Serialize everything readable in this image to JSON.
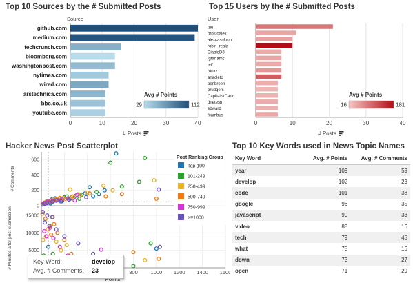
{
  "panels": {
    "sources_title": "Top 10 Sources by the # Submitted Posts",
    "users_title": "Top 15 Users by the # Submitted Posts",
    "scatter_title": "Hacker News Post Scatterplot",
    "keywords_title": "Top 10 Key Words used in News Topic Names"
  },
  "colors": {
    "blue_low": "#b7dcec",
    "blue_high": "#1f4e79",
    "red_low": "#f3c7c3",
    "red_high": "#b50d18"
  },
  "tooltip": {
    "keyword_label": "Key Word:",
    "keyword_value": "develop",
    "comments_label": "Avg. # Comments:",
    "comments_value": "23"
  },
  "chart_data": [
    {
      "type": "bar",
      "orientation": "horizontal",
      "title": "Top 10 Sources by the # Submitted Posts",
      "ylabel": "Source",
      "xlabel": "# Posts",
      "categories": [
        "github.com",
        "medium.com",
        "techcrunch.com",
        "bloomberg.com",
        "washingtonpost.com",
        "nytimes.com",
        "wired.com",
        "arstechnica.com",
        "bbc.co.uk",
        "youtube.com"
      ],
      "values": [
        40,
        39,
        16,
        14,
        14,
        12,
        12,
        11,
        11,
        11
      ],
      "color_values": [
        112,
        108,
        55,
        29,
        48,
        40,
        60,
        52,
        44,
        36
      ],
      "xlim": [
        0,
        40
      ],
      "xticks": [
        0,
        10,
        20,
        30,
        40
      ],
      "legend": {
        "title": "Avg # Points",
        "min": 29,
        "max": 112,
        "placement": "bottom-right"
      }
    },
    {
      "type": "bar",
      "orientation": "horizontal",
      "title": "Top 15 Users by the # Submitted Posts",
      "ylabel": "User",
      "xlabel": "# Posts",
      "categories": [
        "tuu",
        "prostoalex",
        "alexcasalboni",
        "robin_reala",
        "DiabloD3",
        "jgrahamc",
        "ieif",
        "nkurz",
        "anacleto",
        "benbreen",
        "brudgers",
        "CapitalistCartr",
        "dnetesn",
        "edward",
        "fcambus"
      ],
      "values": [
        21,
        11,
        10,
        10,
        7,
        7,
        7,
        7,
        7,
        6,
        6,
        6,
        6,
        6,
        6
      ],
      "color_values": [
        88,
        45,
        50,
        181,
        40,
        45,
        42,
        60,
        110,
        38,
        30,
        35,
        40,
        36,
        42
      ],
      "xlim": [
        0,
        40
      ],
      "xticks": [
        0,
        10,
        20,
        30,
        40
      ],
      "legend": {
        "title": "Avg # Points",
        "min": 16,
        "max": 181,
        "placement": "bottom-right"
      }
    },
    {
      "type": "scatter",
      "title": "Hacker News Post Scatterplot",
      "xlabel": "Points",
      "ylabel_top": "# Comments",
      "ylabel_bottom": "# Minutes after post submission",
      "xlim": [
        0,
        1600
      ],
      "xticks": [
        0,
        200,
        400,
        600,
        800,
        1000,
        1200,
        1400,
        1600
      ],
      "ylim_top": [
        0,
        700
      ],
      "yticks_top": [
        0,
        200,
        400,
        600
      ],
      "ylim_bottom": [
        0,
        17000
      ],
      "yticks_bottom": [
        0,
        5000,
        10000,
        15000
      ],
      "legend": {
        "title": "Post Ranking Group",
        "placement": "right",
        "items": [
          {
            "label": "Top 100",
            "color": "#1f77b4"
          },
          {
            "label": "101-249",
            "color": "#2ca02c"
          },
          {
            "label": "250-499",
            "color": "#e8b521"
          },
          {
            "label": "500-749",
            "color": "#f07a10"
          },
          {
            "label": "750-999",
            "color": "#d634d6"
          },
          {
            "label": ">=1000",
            "color": "#6a54b8"
          }
        ]
      },
      "series": [
        {
          "name": "Top 100",
          "color": "#1f77b4",
          "top": [
            [
              30,
              40
            ],
            [
              60,
              55
            ],
            [
              90,
              80
            ],
            [
              120,
              95
            ],
            [
              150,
              70
            ],
            [
              200,
              110
            ],
            [
              250,
              90
            ],
            [
              300,
              130
            ],
            [
              380,
              160
            ],
            [
              450,
              120
            ],
            [
              550,
              200
            ],
            [
              650,
              680
            ],
            [
              420,
              240
            ],
            [
              180,
              60
            ],
            [
              500,
              150
            ],
            [
              80,
              30
            ]
          ],
          "bottom": [
            [
              30,
              3000
            ],
            [
              60,
              6000
            ],
            [
              120,
              2000
            ],
            [
              200,
              1500
            ],
            [
              300,
              800
            ],
            [
              500,
              700
            ],
            [
              700,
              600
            ],
            [
              1000,
              5500
            ],
            [
              400,
              400
            ],
            [
              150,
              1200
            ],
            [
              90,
              200
            ]
          ]
        },
        {
          "name": "101-249",
          "color": "#2ca02c",
          "top": [
            [
              20,
              30
            ],
            [
              50,
              60
            ],
            [
              80,
              45
            ],
            [
              110,
              70
            ],
            [
              160,
              90
            ],
            [
              220,
              120
            ],
            [
              280,
              100
            ],
            [
              350,
              140
            ],
            [
              480,
              180
            ],
            [
              600,
              560
            ],
            [
              900,
              620
            ],
            [
              850,
              310
            ],
            [
              700,
              250
            ],
            [
              330,
              90
            ]
          ],
          "bottom": [
            [
              20,
              3500
            ],
            [
              60,
              2500
            ],
            [
              100,
              4000
            ],
            [
              150,
              1800
            ],
            [
              240,
              1200
            ],
            [
              300,
              2600
            ],
            [
              400,
              900
            ],
            [
              600,
              1500
            ],
            [
              950,
              7000
            ],
            [
              800,
              500
            ]
          ]
        },
        {
          "name": "250-499",
          "color": "#e8b521",
          "top": [
            [
              15,
              20
            ],
            [
              40,
              50
            ],
            [
              70,
              60
            ],
            [
              100,
              75
            ],
            [
              140,
              85
            ],
            [
              190,
              100
            ],
            [
              260,
              110
            ],
            [
              320,
              150
            ],
            [
              400,
              170
            ],
            [
              540,
              260
            ],
            [
              980,
              330
            ],
            [
              620,
              200
            ],
            [
              250,
              210
            ]
          ],
          "bottom": [
            [
              15,
              8000
            ],
            [
              40,
              9000
            ],
            [
              80,
              12000
            ],
            [
              100,
              14500
            ],
            [
              130,
              7500
            ],
            [
              170,
              5000
            ],
            [
              220,
              6500
            ],
            [
              280,
              3000
            ],
            [
              350,
              2000
            ],
            [
              480,
              1800
            ],
            [
              900,
              2200
            ],
            [
              700,
              1300
            ]
          ]
        },
        {
          "name": "500-749",
          "color": "#f07a10",
          "top": [
            [
              10,
              25
            ],
            [
              35,
              40
            ],
            [
              55,
              55
            ],
            [
              85,
              70
            ],
            [
              120,
              80
            ],
            [
              160,
              100
            ],
            [
              210,
              90
            ],
            [
              270,
              120
            ],
            [
              340,
              130
            ],
            [
              420,
              160
            ],
            [
              700,
              150
            ],
            [
              1000,
              90
            ],
            [
              560,
              120
            ]
          ],
          "bottom": [
            [
              10,
              15500
            ],
            [
              35,
              14000
            ],
            [
              55,
              11000
            ],
            [
              85,
              9500
            ],
            [
              110,
              12500
            ],
            [
              140,
              10000
            ],
            [
              200,
              8000
            ],
            [
              260,
              4000
            ],
            [
              330,
              1500
            ],
            [
              480,
              1200
            ],
            [
              640,
              900
            ],
            [
              800,
              4500
            ],
            [
              1020,
              2600
            ]
          ]
        },
        {
          "name": "750-999",
          "color": "#d634d6",
          "top": [
            [
              25,
              35
            ],
            [
              45,
              45
            ],
            [
              75,
              65
            ],
            [
              105,
              60
            ],
            [
              135,
              75
            ],
            [
              175,
              80
            ],
            [
              230,
              95
            ],
            [
              290,
              70
            ],
            [
              310,
              140
            ]
          ],
          "bottom": [
            [
              25,
              10500
            ],
            [
              45,
              9000
            ],
            [
              75,
              11500
            ],
            [
              105,
              8500
            ],
            [
              160,
              6000
            ],
            [
              230,
              3500
            ],
            [
              380,
              2500
            ],
            [
              520,
              5200
            ],
            [
              600,
              1100
            ]
          ]
        },
        {
          "name": ">=1000",
          "color": "#6a54b8",
          "top": [
            [
              12,
              15
            ],
            [
              30,
              25
            ],
            [
              50,
              35
            ],
            [
              70,
              40
            ],
            [
              95,
              50
            ],
            [
              130,
              65
            ],
            [
              170,
              55
            ],
            [
              240,
              80
            ],
            [
              1020,
              210
            ],
            [
              390,
              110
            ]
          ],
          "bottom": [
            [
              12,
              16000
            ],
            [
              30,
              13000
            ],
            [
              50,
              15000
            ],
            [
              70,
              12000
            ],
            [
              95,
              14500
            ],
            [
              130,
              11000
            ],
            [
              200,
              9000
            ],
            [
              320,
              7000
            ],
            [
              450,
              4000
            ],
            [
              1030,
              6000
            ]
          ]
        }
      ]
    },
    {
      "type": "table",
      "title": "Top 10 Key Words used in News Topic Names",
      "columns": [
        "Key Word",
        "Avg. # Points",
        "Avg. # Comments"
      ],
      "rows": [
        [
          "year",
          "109",
          "59"
        ],
        [
          "develop",
          "102",
          "23"
        ],
        [
          "code",
          "101",
          "38"
        ],
        [
          "google",
          "96",
          "35"
        ],
        [
          "javascript",
          "90",
          "33"
        ],
        [
          "video",
          "88",
          "16"
        ],
        [
          "tech",
          "79",
          "45"
        ],
        [
          "what",
          "75",
          "16"
        ],
        [
          "down",
          "73",
          "27"
        ],
        [
          "open",
          "71",
          "29"
        ]
      ]
    }
  ]
}
